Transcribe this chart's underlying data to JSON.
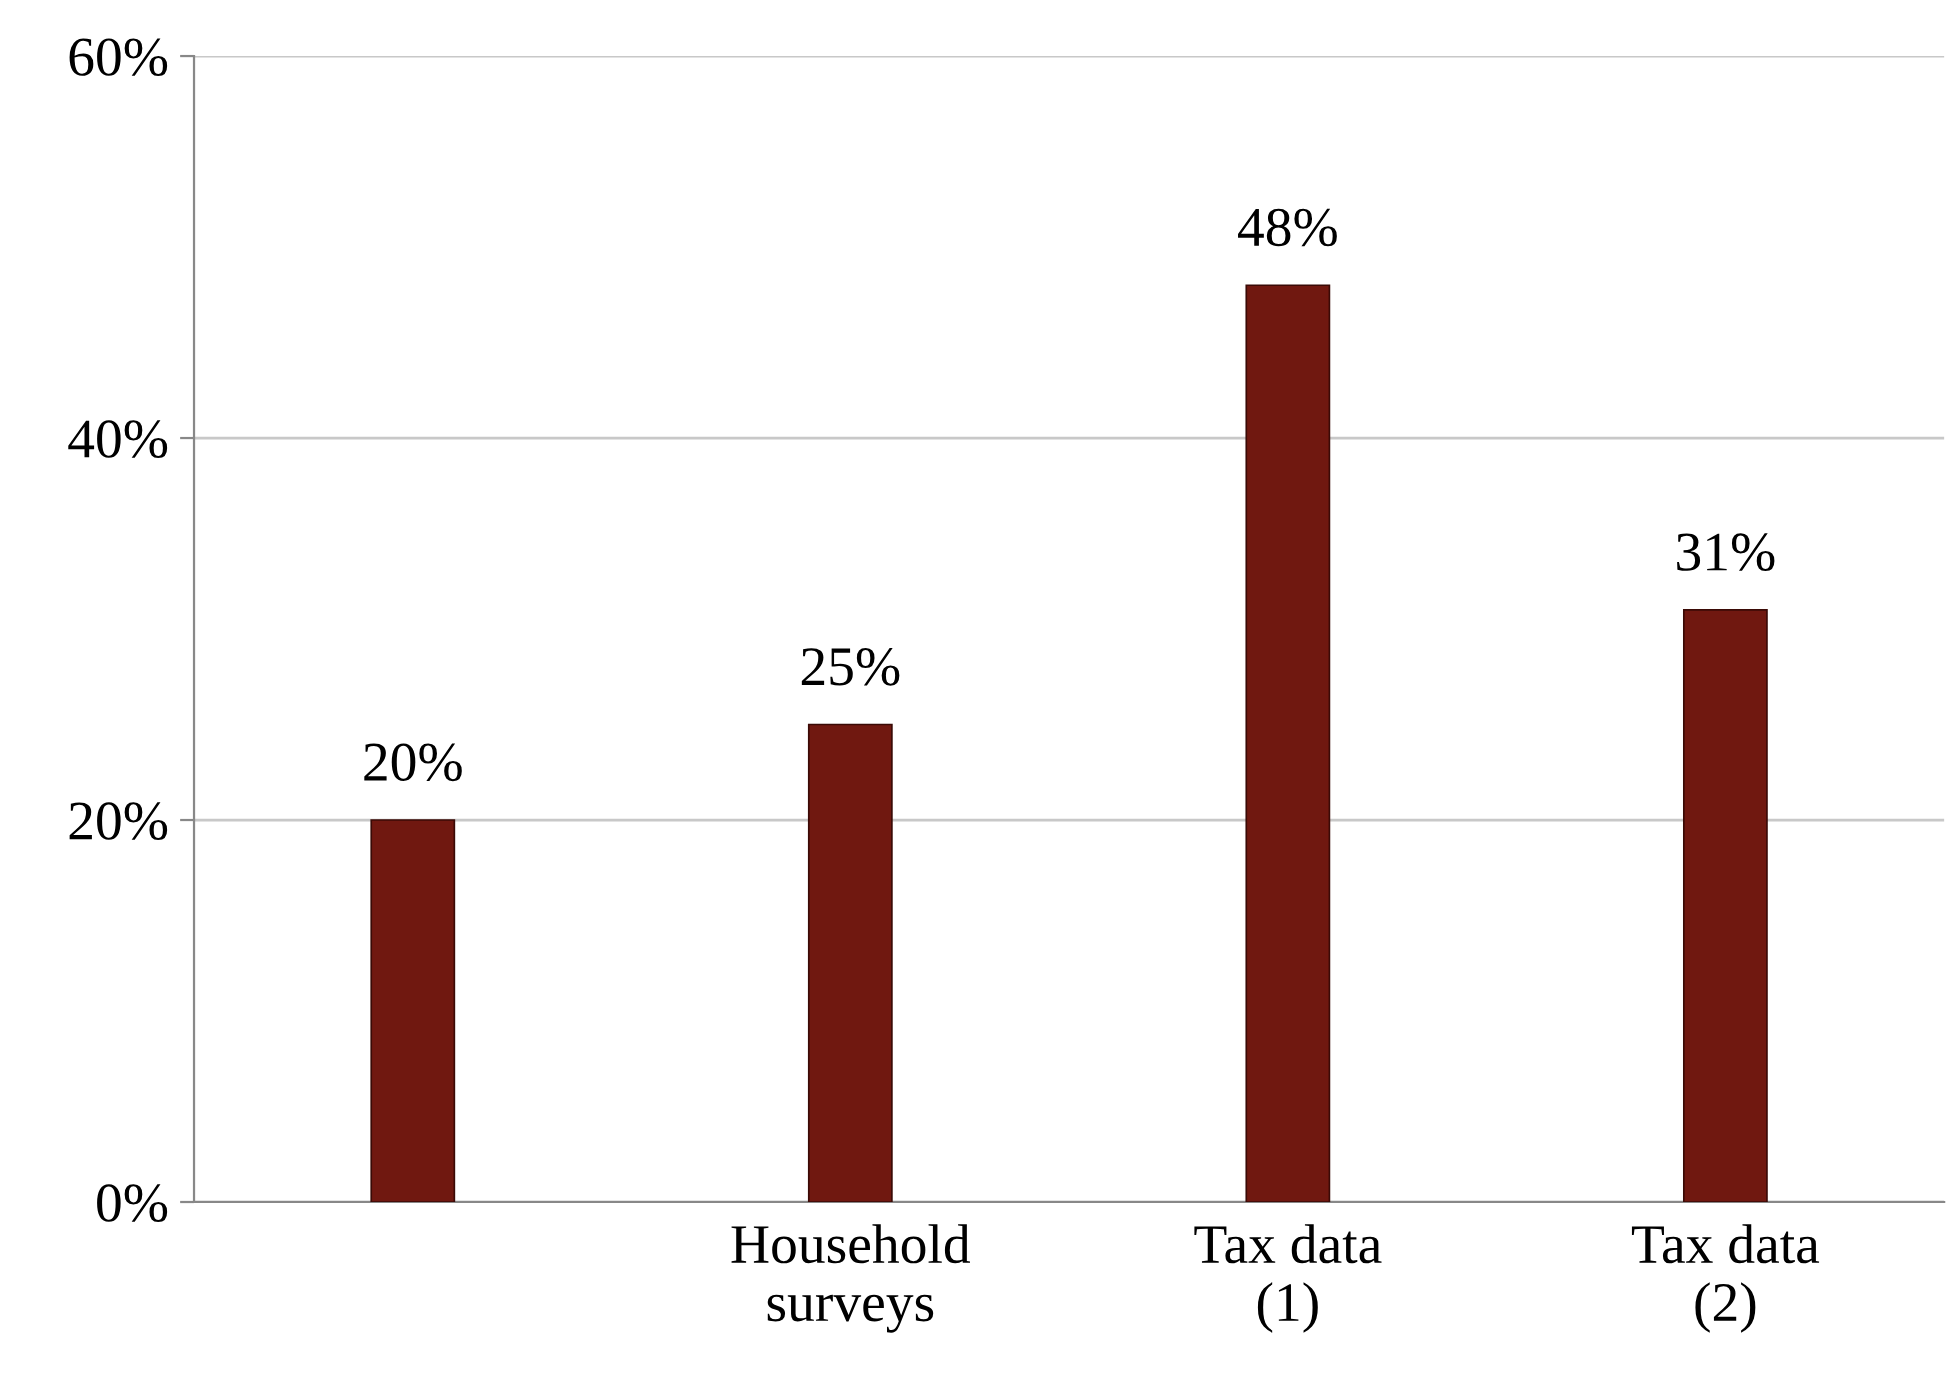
{
  "chart_data": {
    "type": "bar",
    "categories": [
      null,
      "Household\nsurveys",
      "Tax data\n(1)",
      "Tax data\n(2)"
    ],
    "values": [
      20,
      25,
      48,
      31
    ],
    "value_labels": [
      "20%",
      "25%",
      "48%",
      "31%"
    ],
    "color": "#701810",
    "ylim": [
      0,
      60
    ],
    "yticks": [
      {
        "value": 0,
        "label": "0%"
      },
      {
        "value": 20,
        "label": "20%"
      },
      {
        "value": 40,
        "label": "40%"
      },
      {
        "value": 60,
        "label": "60%"
      }
    ],
    "grid": "y"
  }
}
